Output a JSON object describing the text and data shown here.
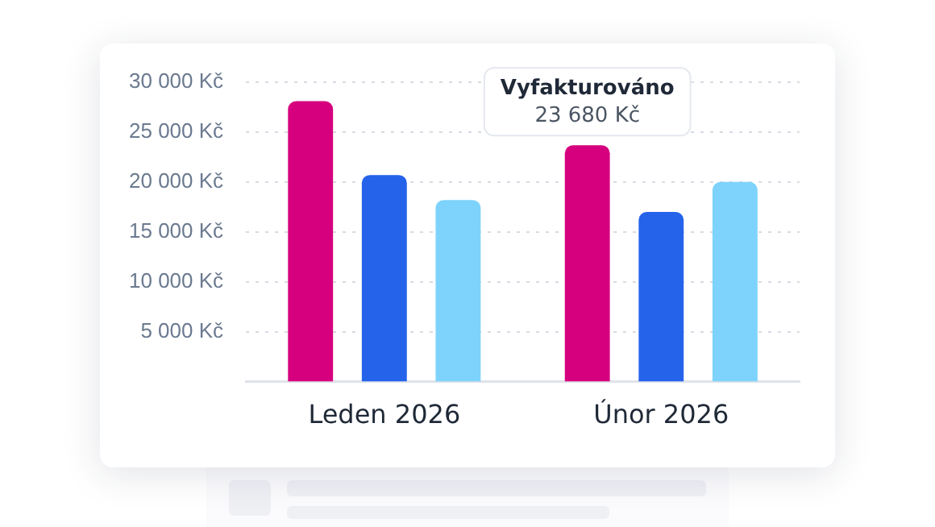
{
  "chart_data": {
    "type": "bar",
    "categories": [
      "Leden 2026",
      "Únor 2026"
    ],
    "series": [
      {
        "name": "Vyfakturováno",
        "color": "#d6007f",
        "values": [
          28100,
          23680
        ],
        "value_labels": [
          null,
          "23 680 Kč"
        ]
      },
      {
        "color": "#2563eb",
        "values": [
          20700,
          17000
        ]
      },
      {
        "color": "#7dd3fc",
        "values": [
          18200,
          20000
        ]
      }
    ],
    "ylim": [
      0,
      30000
    ],
    "yticks": [
      {
        "value": 5000,
        "label": "5 000 Kč"
      },
      {
        "value": 10000,
        "label": "10 000 Kč"
      },
      {
        "value": 15000,
        "label": "15 000 Kč"
      },
      {
        "value": 20000,
        "label": "20 000 Kč"
      },
      {
        "value": 25000,
        "label": "25 000 Kč"
      },
      {
        "value": 30000,
        "label": "30 000 Kč"
      }
    ],
    "grid": "y",
    "legend": false
  }
}
